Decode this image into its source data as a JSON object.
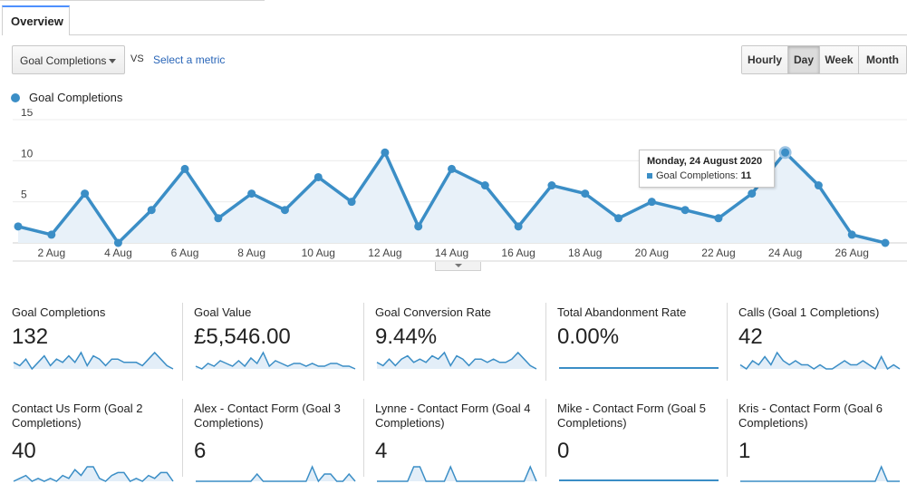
{
  "tabs": [
    {
      "label": "Overview"
    }
  ],
  "controls": {
    "metric": "Goal Completions",
    "vs": "VS",
    "select_metric": "Select a metric",
    "granularity": [
      "Hourly",
      "Day",
      "Week",
      "Month"
    ],
    "granularity_selected": "Day"
  },
  "legend": {
    "label": "Goal Completions",
    "color": "#3b8ec6"
  },
  "chart_data": {
    "type": "line",
    "series": [
      {
        "name": "Goal Completions",
        "color": "#3b8ec6",
        "x": [
          "1 Aug",
          "2 Aug",
          "3 Aug",
          "4 Aug",
          "5 Aug",
          "6 Aug",
          "7 Aug",
          "8 Aug",
          "9 Aug",
          "10 Aug",
          "11 Aug",
          "12 Aug",
          "13 Aug",
          "14 Aug",
          "15 Aug",
          "16 Aug",
          "17 Aug",
          "18 Aug",
          "19 Aug",
          "20 Aug",
          "21 Aug",
          "22 Aug",
          "23 Aug",
          "24 Aug",
          "25 Aug",
          "26 Aug",
          "27 Aug"
        ],
        "values": [
          2,
          1,
          6,
          0,
          4,
          9,
          3,
          6,
          4,
          8,
          5,
          11,
          2,
          9,
          7,
          2,
          7,
          6,
          3,
          5,
          4,
          3,
          6,
          11,
          7,
          1,
          0
        ]
      }
    ],
    "xticks": [
      "2 Aug",
      "4 Aug",
      "6 Aug",
      "8 Aug",
      "10 Aug",
      "12 Aug",
      "14 Aug",
      "16 Aug",
      "18 Aug",
      "20 Aug",
      "22 Aug",
      "24 Aug",
      "26 Aug"
    ],
    "yticks": [
      5,
      10,
      15
    ],
    "ylim": [
      0,
      15
    ],
    "area_fill": true,
    "grid": true,
    "highlight_x": "24 Aug"
  },
  "tooltip": {
    "date": "Monday, 24 August 2020",
    "label": "Goal Completions:",
    "value": "11"
  },
  "scorecards": [
    {
      "title": "Goal Completions",
      "value": "132",
      "spark": [
        2,
        1,
        3,
        0,
        2,
        4,
        1,
        3,
        2,
        4,
        2,
        5,
        1,
        4,
        3,
        1,
        3,
        3,
        2,
        2,
        2,
        1,
        3,
        5,
        3,
        1,
        0
      ]
    },
    {
      "title": "Goal Value",
      "value": "£5,546.00",
      "spark": [
        1,
        0,
        2,
        1,
        3,
        2,
        1,
        3,
        1,
        4,
        2,
        6,
        1,
        3,
        2,
        1,
        2,
        2,
        1,
        2,
        1,
        1,
        2,
        2,
        1,
        1,
        0
      ]
    },
    {
      "title": "Goal Conversion Rate",
      "value": "9.44%",
      "spark": [
        2,
        1,
        3,
        1,
        3,
        4,
        2,
        3,
        2,
        4,
        3,
        5,
        1,
        4,
        3,
        1,
        3,
        3,
        2,
        3,
        2,
        2,
        3,
        5,
        3,
        1,
        0
      ]
    },
    {
      "title": "Total Abandonment Rate",
      "value": "0.00%",
      "spark": [
        0,
        0,
        0,
        0,
        0,
        0,
        0,
        0,
        0,
        0,
        0,
        0,
        0,
        0,
        0,
        0,
        0,
        0,
        0,
        0,
        0,
        0,
        0,
        0,
        0,
        0,
        0
      ]
    },
    {
      "title": "Calls (Goal 1 Completions)",
      "value": "42",
      "spark": [
        1,
        0,
        2,
        1,
        3,
        1,
        4,
        2,
        1,
        2,
        1,
        1,
        0,
        1,
        0,
        0,
        1,
        2,
        1,
        1,
        2,
        1,
        0,
        3,
        0,
        1,
        0
      ]
    },
    {
      "title": "Contact Us Form (Goal 2 Completions)",
      "value": "40",
      "spark": [
        0,
        1,
        2,
        0,
        1,
        0,
        1,
        0,
        2,
        1,
        4,
        2,
        5,
        5,
        1,
        0,
        2,
        3,
        3,
        0,
        1,
        0,
        2,
        1,
        3,
        3,
        0
      ]
    },
    {
      "title": "Alex - Contact Form (Goal 3 Completions)",
      "value": "6",
      "spark": [
        0,
        0,
        0,
        0,
        0,
        0,
        0,
        0,
        0,
        0,
        1,
        0,
        0,
        0,
        0,
        0,
        0,
        0,
        0,
        2,
        0,
        1,
        1,
        0,
        0,
        1,
        0
      ]
    },
    {
      "title": "Lynne - Contact Form (Goal 4 Completions)",
      "value": "4",
      "spark": [
        0,
        0,
        0,
        0,
        0,
        0,
        1,
        1,
        0,
        0,
        0,
        0,
        1,
        0,
        0,
        0,
        0,
        0,
        0,
        0,
        0,
        0,
        0,
        0,
        0,
        1,
        0
      ]
    },
    {
      "title": "Mike - Contact Form (Goal 5 Completions)",
      "value": "0",
      "spark": [
        0,
        0,
        0,
        0,
        0,
        0,
        0,
        0,
        0,
        0,
        0,
        0,
        0,
        0,
        0,
        0,
        0,
        0,
        0,
        0,
        0,
        0,
        0,
        0,
        0,
        0,
        0
      ]
    },
    {
      "title": "Kris - Contact Form (Goal 6 Completions)",
      "value": "1",
      "spark": [
        0,
        0,
        0,
        0,
        0,
        0,
        0,
        0,
        0,
        0,
        0,
        0,
        0,
        0,
        0,
        0,
        0,
        0,
        0,
        0,
        0,
        0,
        0,
        1,
        0,
        0,
        0
      ]
    }
  ]
}
